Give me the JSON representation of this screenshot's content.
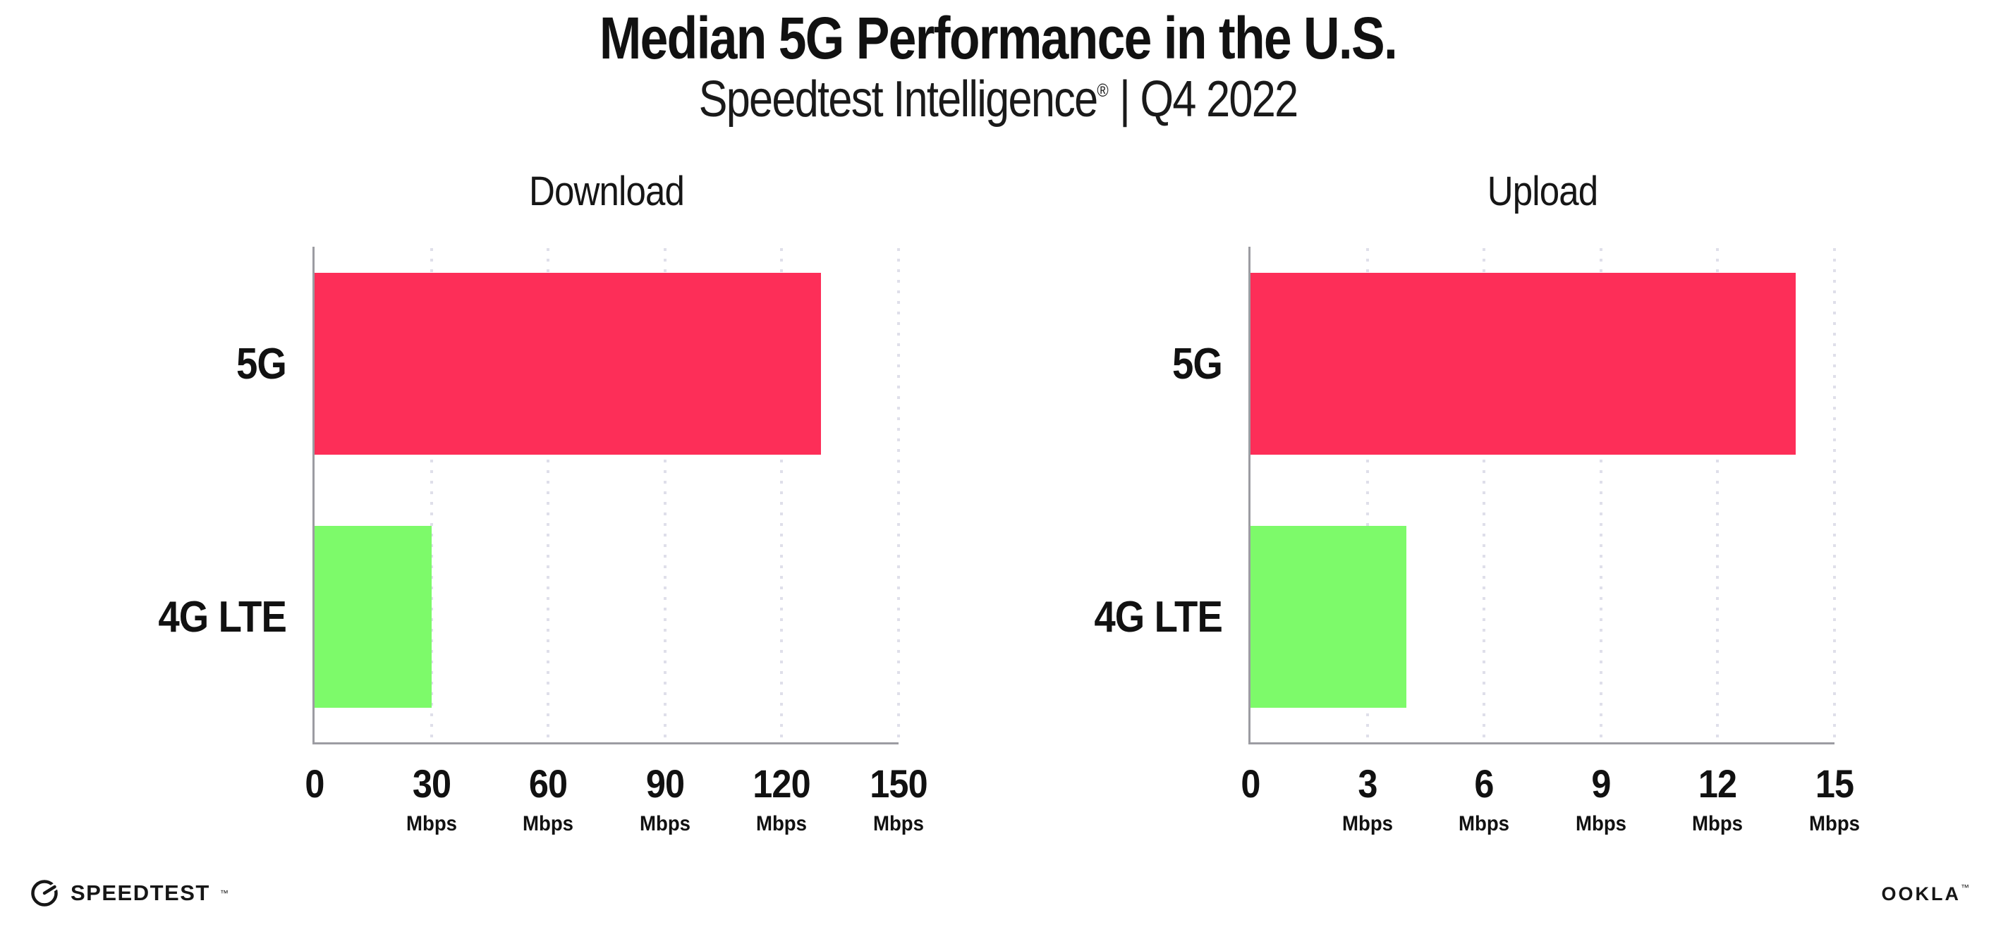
{
  "header": {
    "title": "Median 5G Performance in the U.S.",
    "subtitle": {
      "brand": "Speedtest Intelligence",
      "registered": "®",
      "rest": " | Q4 2022"
    }
  },
  "chart_data": [
    {
      "type": "bar",
      "orientation": "horizontal",
      "title": "Download",
      "categories": [
        "5G",
        "4G LTE"
      ],
      "values": [
        130,
        30
      ],
      "unit": "Mbps",
      "xlabel": "",
      "ylabel": "",
      "xlim": [
        0,
        150
      ],
      "ticks": [
        "0",
        "30",
        "60",
        "90",
        "120",
        "150"
      ],
      "tick_units": [
        "",
        "Mbps",
        "Mbps",
        "Mbps",
        "Mbps",
        "Mbps"
      ],
      "bar_colors": [
        "#fd2e58",
        "#7dfa6a"
      ],
      "grid": "dotted vertical gridlines at each tick",
      "legend": "none"
    },
    {
      "type": "bar",
      "orientation": "horizontal",
      "title": "Upload",
      "categories": [
        "5G",
        "4G LTE"
      ],
      "values": [
        14,
        4
      ],
      "unit": "Mbps",
      "xlabel": "",
      "ylabel": "",
      "xlim": [
        0,
        15
      ],
      "ticks": [
        "0",
        "3",
        "6",
        "9",
        "12",
        "15"
      ],
      "tick_units": [
        "",
        "Mbps",
        "Mbps",
        "Mbps",
        "Mbps",
        "Mbps"
      ],
      "bar_colors": [
        "#fd2e58",
        "#7dfa6a"
      ],
      "grid": "dotted vertical gridlines at each tick",
      "legend": "none"
    }
  ],
  "colors": {
    "bar_5g": "#fd2e58",
    "bar_4g_lte": "#7dfa6a",
    "axis": "#9c9ca2",
    "grid_dot": "#dfdfea",
    "text": "#111111",
    "background": "#ffffff"
  },
  "footer": {
    "speedtest": {
      "label": "SPEEDTEST",
      "tm": "™",
      "icon": "speedtest-gauge-icon"
    },
    "ookla": {
      "label": "OOKLA",
      "tm": "™"
    }
  }
}
